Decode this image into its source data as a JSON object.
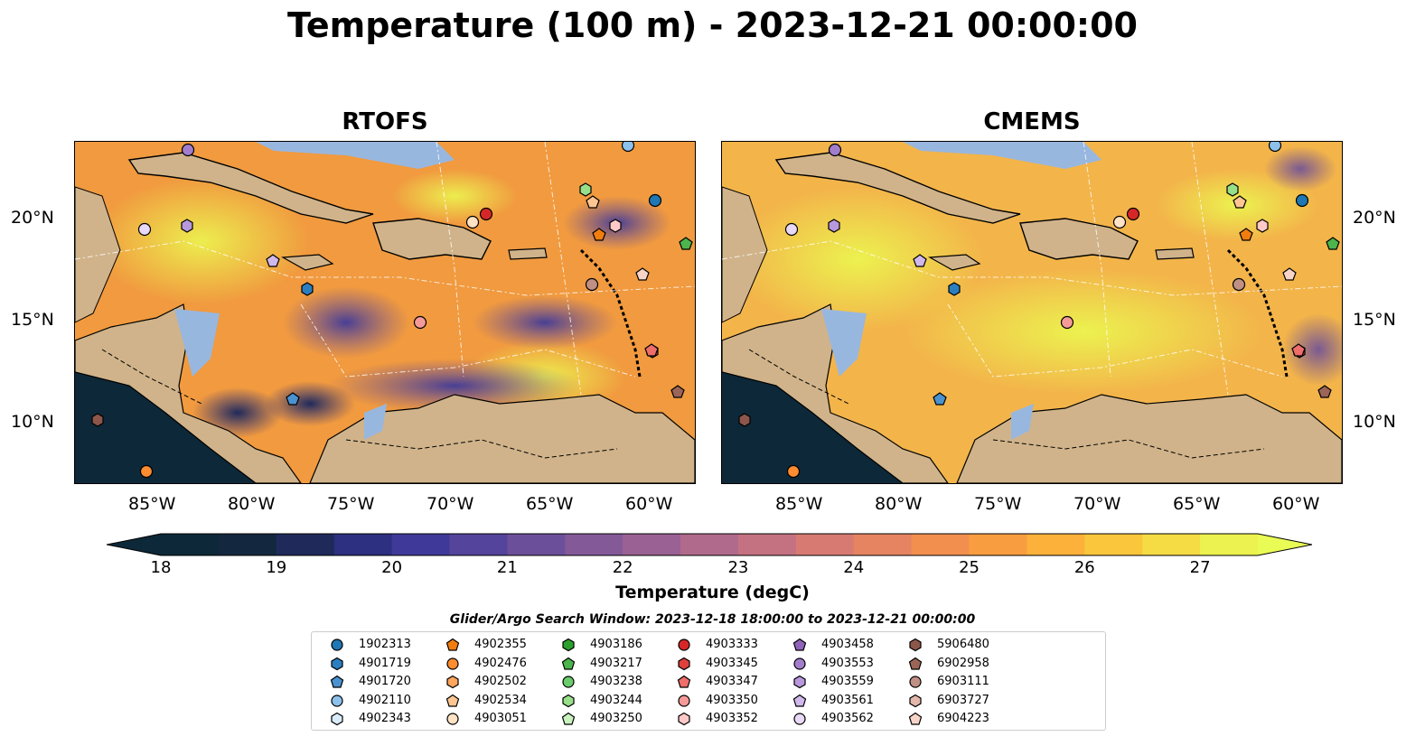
{
  "title": "Temperature (100 m) - 2023-12-21 00:00:00",
  "panels": [
    {
      "title": "RTOFS"
    },
    {
      "title": "CMEMS"
    }
  ],
  "lat_labels": [
    "20°N",
    "15°N",
    "10°N"
  ],
  "lon_labels": [
    "85°W",
    "80°W",
    "75°W",
    "70°W",
    "65°W",
    "60°W"
  ],
  "colorbar": {
    "label": "Temperature (degC)",
    "ticks": [
      "18",
      "19",
      "20",
      "21",
      "22",
      "23",
      "24",
      "25",
      "26",
      "27"
    ],
    "colors": [
      "#0d2838",
      "#13283f",
      "#1f2a5a",
      "#2d2f80",
      "#3f3a99",
      "#55449b",
      "#6c4f9a",
      "#845998",
      "#9a6194",
      "#b06a8c",
      "#c47281",
      "#d77b72",
      "#e68462",
      "#f28f4f",
      "#f99e40",
      "#fbb13a",
      "#f9c63c",
      "#f5dc44",
      "#ecf24f"
    ],
    "under_color": "#0d2838",
    "over_color": "#e9fc55"
  },
  "legend": {
    "title": "Glider/Argo Search Window: 2023-12-18 18:00:00 to 2023-12-21 00:00:00",
    "items": [
      {
        "id": "1902313",
        "marker": "circle",
        "color": "#1f77b4"
      },
      {
        "id": "4901719",
        "marker": "hexagon",
        "color": "#2b7fc0"
      },
      {
        "id": "4901720",
        "marker": "pentagon",
        "color": "#4a92d0"
      },
      {
        "id": "4902110",
        "marker": "circle",
        "color": "#8cc1ec"
      },
      {
        "id": "4902343",
        "marker": "hexagon",
        "color": "#d9ecfb"
      },
      {
        "id": "4902355",
        "marker": "pentagon",
        "color": "#f07d0e"
      },
      {
        "id": "4902476",
        "marker": "circle",
        "color": "#ff8c30"
      },
      {
        "id": "4902502",
        "marker": "hexagon",
        "color": "#ffa65c"
      },
      {
        "id": "4902534",
        "marker": "pentagon",
        "color": "#ffc693"
      },
      {
        "id": "4903051",
        "marker": "circle",
        "color": "#ffe3c4"
      },
      {
        "id": "4903186",
        "marker": "hexagon",
        "color": "#2ca02c"
      },
      {
        "id": "4903217",
        "marker": "pentagon",
        "color": "#4cb54c"
      },
      {
        "id": "4903238",
        "marker": "circle",
        "color": "#6ccc6c"
      },
      {
        "id": "4903244",
        "marker": "hexagon",
        "color": "#98df8a"
      },
      {
        "id": "4903250",
        "marker": "pentagon",
        "color": "#c9f2bf"
      },
      {
        "id": "4903333",
        "marker": "circle",
        "color": "#d62728"
      },
      {
        "id": "4903345",
        "marker": "hexagon",
        "color": "#e0403c"
      },
      {
        "id": "4903347",
        "marker": "pentagon",
        "color": "#ee6e6a"
      },
      {
        "id": "4903350",
        "marker": "circle",
        "color": "#f59a98"
      },
      {
        "id": "4903352",
        "marker": "hexagon",
        "color": "#ffc9c7"
      },
      {
        "id": "4903458",
        "marker": "pentagon",
        "color": "#8f63b8"
      },
      {
        "id": "4903553",
        "marker": "circle",
        "color": "#a27dcc"
      },
      {
        "id": "4903559",
        "marker": "hexagon",
        "color": "#b898dc"
      },
      {
        "id": "4903561",
        "marker": "pentagon",
        "color": "#d0b8ec"
      },
      {
        "id": "4903562",
        "marker": "circle",
        "color": "#e8d9f8"
      },
      {
        "id": "5906480",
        "marker": "hexagon",
        "color": "#8c564b"
      },
      {
        "id": "6902958",
        "marker": "pentagon",
        "color": "#9b6558"
      },
      {
        "id": "6903111",
        "marker": "circle",
        "color": "#c09085"
      },
      {
        "id": "6903727",
        "marker": "hexagon",
        "color": "#e3b7ab"
      },
      {
        "id": "6904223",
        "marker": "pentagon",
        "color": "#f8d4c8"
      }
    ]
  },
  "map_colors": {
    "land": "#d0b38a",
    "shelf": "#98b7df",
    "deep": "#0d2838",
    "warm": "#f2a53a",
    "hot": "#ecf24f",
    "cool": "#55449b"
  }
}
